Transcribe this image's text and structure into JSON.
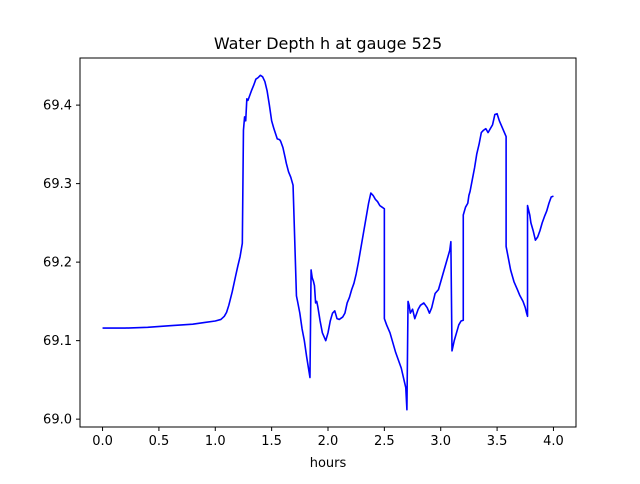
{
  "chart_data": {
    "type": "line",
    "title": "Water Depth h at gauge 525",
    "xlabel": "hours",
    "ylabel": "",
    "xlim": [
      -0.2,
      4.2
    ],
    "ylim": [
      68.99,
      69.46
    ],
    "xticks": [
      0.0,
      0.5,
      1.0,
      1.5,
      2.0,
      2.5,
      3.0,
      3.5,
      4.0
    ],
    "xtick_labels": [
      "0.0",
      "0.5",
      "1.0",
      "1.5",
      "2.0",
      "2.5",
      "3.0",
      "3.5",
      "4.0"
    ],
    "yticks": [
      69.0,
      69.1,
      69.2,
      69.3,
      69.4
    ],
    "ytick_labels": [
      "69.0",
      "69.1",
      "69.2",
      "69.3",
      "69.4"
    ],
    "grid": false,
    "legend": "none",
    "series": [
      {
        "color": "#0000ff",
        "x": [
          0.0,
          0.2,
          0.4,
          0.6,
          0.7,
          0.8,
          0.9,
          1.0,
          1.05,
          1.08,
          1.1,
          1.12,
          1.15,
          1.18,
          1.2,
          1.22,
          1.24,
          1.25,
          1.26,
          1.27,
          1.28,
          1.29,
          1.3,
          1.32,
          1.34,
          1.36,
          1.38,
          1.4,
          1.42,
          1.44,
          1.46,
          1.48,
          1.5,
          1.52,
          1.55,
          1.57,
          1.58,
          1.6,
          1.62,
          1.63,
          1.65,
          1.67,
          1.69,
          1.72,
          1.73,
          1.75,
          1.77,
          1.79,
          1.81,
          1.84,
          1.85,
          1.86,
          1.87,
          1.88,
          1.89,
          1.9,
          1.91,
          1.93,
          1.95,
          1.98,
          2.0,
          2.02,
          2.04,
          2.06,
          2.08,
          2.1,
          2.13,
          2.15,
          2.17,
          2.19,
          2.21,
          2.23,
          2.25,
          2.27,
          2.3,
          2.33,
          2.36,
          2.38,
          2.4,
          2.42,
          2.44,
          2.46,
          2.48,
          2.5,
          2.5,
          2.52,
          2.55,
          2.6,
          2.65,
          2.69,
          2.7,
          2.71,
          2.72,
          2.73,
          2.75,
          2.77,
          2.8,
          2.82,
          2.85,
          2.88,
          2.9,
          2.92,
          2.95,
          2.98,
          3.0,
          3.02,
          3.05,
          3.08,
          3.09,
          3.1,
          3.12,
          3.14,
          3.16,
          3.18,
          3.2,
          3.2,
          3.22,
          3.24,
          3.25,
          3.26,
          3.28,
          3.3,
          3.32,
          3.34,
          3.36,
          3.38,
          3.4,
          3.42,
          3.44,
          3.46,
          3.48,
          3.5,
          3.52,
          3.55,
          3.58,
          3.58,
          3.6,
          3.62,
          3.65,
          3.68,
          3.7,
          3.73,
          3.75,
          3.76,
          3.77,
          3.77,
          3.79,
          3.8,
          3.82,
          3.84,
          3.86,
          3.88,
          3.9,
          3.92,
          3.94,
          3.96,
          3.98,
          4.0
        ],
        "y": [
          69.116,
          69.116,
          69.117,
          69.119,
          69.12,
          69.121,
          69.123,
          69.125,
          69.127,
          69.131,
          69.136,
          69.145,
          69.162,
          69.182,
          69.195,
          69.207,
          69.224,
          69.368,
          69.385,
          69.38,
          69.408,
          69.406,
          69.41,
          69.418,
          69.425,
          69.433,
          69.435,
          69.438,
          69.436,
          69.43,
          69.418,
          69.4,
          69.38,
          69.37,
          69.357,
          69.356,
          69.354,
          69.346,
          69.333,
          69.326,
          69.315,
          69.308,
          69.298,
          69.157,
          69.15,
          69.135,
          69.115,
          69.1,
          69.08,
          69.053,
          69.19,
          69.18,
          69.176,
          69.17,
          69.148,
          69.15,
          69.143,
          69.125,
          69.11,
          69.1,
          69.11,
          69.125,
          69.135,
          69.138,
          69.128,
          69.127,
          69.13,
          69.135,
          69.148,
          69.155,
          69.165,
          69.173,
          69.185,
          69.2,
          69.225,
          69.25,
          69.275,
          69.288,
          69.285,
          69.28,
          69.277,
          69.272,
          69.27,
          69.268,
          69.128,
          69.12,
          69.11,
          69.085,
          69.065,
          69.04,
          69.012,
          69.15,
          69.145,
          69.135,
          69.14,
          69.128,
          69.14,
          69.145,
          69.148,
          69.142,
          69.135,
          69.142,
          69.16,
          69.165,
          69.175,
          69.185,
          69.2,
          69.215,
          69.226,
          69.087,
          69.1,
          69.11,
          69.12,
          69.125,
          69.126,
          69.26,
          69.27,
          69.275,
          69.285,
          69.29,
          69.305,
          69.32,
          69.338,
          69.35,
          69.365,
          69.368,
          69.37,
          69.365,
          69.37,
          69.375,
          69.388,
          69.389,
          69.38,
          69.37,
          69.36,
          69.22,
          69.205,
          69.19,
          69.175,
          69.165,
          69.158,
          69.15,
          69.142,
          69.136,
          69.131,
          69.272,
          69.26,
          69.25,
          69.24,
          69.228,
          69.232,
          69.24,
          69.25,
          69.258,
          69.265,
          69.275,
          69.283,
          69.284
        ]
      }
    ]
  }
}
